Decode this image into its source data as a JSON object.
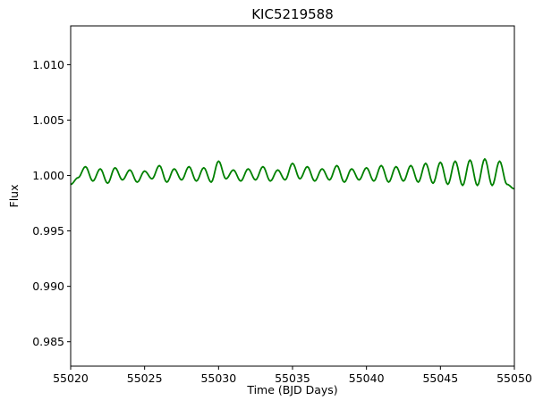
{
  "chart_data": {
    "type": "line",
    "title": "KIC5219588",
    "xlabel": "Time (BJD Days)",
    "ylabel": "Flux",
    "xlim": [
      55020,
      55050
    ],
    "ylim": [
      0.9828,
      1.0135
    ],
    "xticks": [
      55020,
      55025,
      55030,
      55035,
      55040,
      55045,
      55050
    ],
    "xtick_labels": [
      "55020",
      "55025",
      "55030",
      "55035",
      "55040",
      "55045",
      "55050"
    ],
    "yticks": [
      0.985,
      0.99,
      0.995,
      1.0,
      1.005,
      1.01
    ],
    "ytick_labels": [
      "0.985",
      "0.990",
      "0.995",
      "1.000",
      "1.005",
      "1.010"
    ],
    "grid": false,
    "legend": "none",
    "series": [
      {
        "color": "#008000",
        "x": [
          55020.0,
          55020.5,
          55021.0,
          55021.5,
          55022.0,
          55022.5,
          55023.0,
          55023.5,
          55024.0,
          55024.5,
          55025.0,
          55025.5,
          55026.0,
          55026.5,
          55027.0,
          55027.5,
          55028.0,
          55028.5,
          55029.0,
          55029.5,
          55030.0,
          55030.5,
          55031.0,
          55031.5,
          55032.0,
          55032.5,
          55033.0,
          55033.5,
          55034.0,
          55034.5,
          55035.0,
          55035.5,
          55036.0,
          55036.5,
          55037.0,
          55037.5,
          55038.0,
          55038.5,
          55039.0,
          55039.5,
          55040.0,
          55040.5,
          55041.0,
          55041.5,
          55042.0,
          55042.5,
          55043.0,
          55043.5,
          55044.0,
          55044.5,
          55045.0,
          55045.5,
          55046.0,
          55046.5,
          55047.0,
          55047.5,
          55048.0,
          55048.5,
          55049.0,
          55049.5,
          55050.0
        ],
        "y": [
          0.9992,
          0.9998,
          1.0008,
          0.9995,
          1.0006,
          0.9993,
          1.0007,
          0.9996,
          1.0005,
          0.9994,
          1.0004,
          0.9997,
          1.0009,
          0.9994,
          1.0006,
          0.9996,
          1.0008,
          0.9995,
          1.0007,
          0.9994,
          1.0013,
          0.9997,
          1.0005,
          0.9995,
          1.0006,
          0.9996,
          1.0008,
          0.9995,
          1.0005,
          0.9996,
          1.0011,
          0.9997,
          1.0008,
          0.9995,
          1.0006,
          0.9996,
          1.0009,
          0.9994,
          1.0006,
          0.9996,
          1.0007,
          0.9995,
          1.0009,
          0.9994,
          1.0008,
          0.9995,
          1.0009,
          0.9994,
          1.0011,
          0.9993,
          1.0012,
          0.9992,
          1.0013,
          0.9991,
          1.0014,
          0.9991,
          1.0015,
          0.9991,
          1.0013,
          0.9992,
          0.9988
        ]
      }
    ]
  }
}
